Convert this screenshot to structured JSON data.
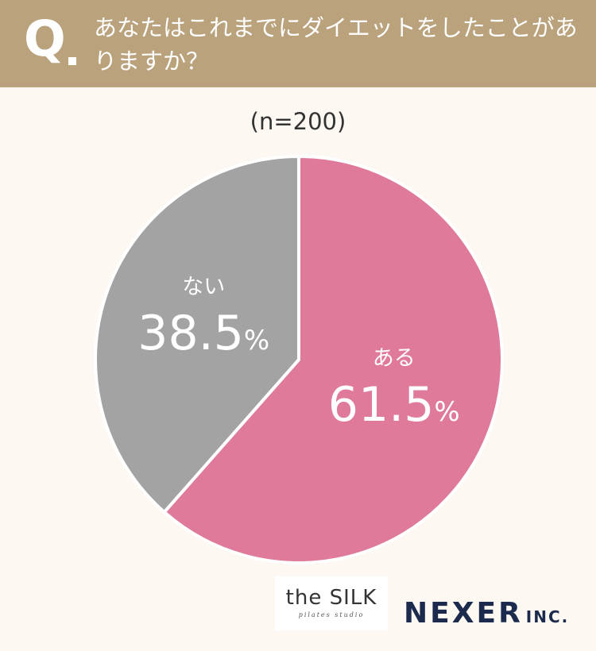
{
  "question": {
    "prefix": "Q",
    "text": "あなたはこれまでにダイエットをしたことがありますか？"
  },
  "sample_size": "(n=200)",
  "chart_data": {
    "type": "pie",
    "title": "あなたはこれまでにダイエットをしたことがありますか？",
    "note": "(n=200)",
    "slices": [
      {
        "label": "ある",
        "value": 61.5,
        "display": "61.5",
        "color": "#e07a9a"
      },
      {
        "label": "ない",
        "value": 38.5,
        "display": "38.5",
        "color": "#a3a3a3"
      }
    ],
    "unit": "%",
    "start": "12 o'clock",
    "direction": "clockwise",
    "separator_color": "#ffffff"
  },
  "logos": {
    "silk_name": "the SILK",
    "silk_tagline": "pilates studio",
    "nexer_name": "NEXER",
    "nexer_suffix": "INC."
  }
}
